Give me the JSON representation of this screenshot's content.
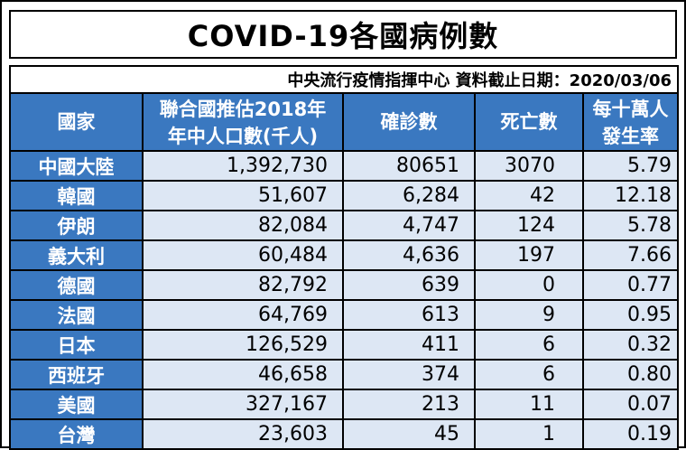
{
  "title": "COVID-19各國病例數",
  "source": "中央流行疫情指揮中心 資料截止日期：2020/03/06",
  "headers": {
    "country": "國家",
    "population_line1": "聯合國推估2018年",
    "population_line2": "年中人口數(千人)",
    "cases": "確診數",
    "deaths": "死亡數",
    "rate_line1": "每十萬人",
    "rate_line2": "發生率"
  },
  "rows": [
    {
      "country": "中國大陸",
      "population": "1,392,730",
      "cases": "80651",
      "deaths": "3070",
      "rate": "5.79"
    },
    {
      "country": "韓國",
      "population": "51,607",
      "cases": "6,284",
      "deaths": "42",
      "rate": "12.18"
    },
    {
      "country": "伊朗",
      "population": "82,084",
      "cases": "4,747",
      "deaths": "124",
      "rate": "5.78"
    },
    {
      "country": "義大利",
      "population": "60,484",
      "cases": "4,636",
      "deaths": "197",
      "rate": "7.66"
    },
    {
      "country": "德國",
      "population": "82,792",
      "cases": "639",
      "deaths": "0",
      "rate": "0.77"
    },
    {
      "country": "法國",
      "population": "64,769",
      "cases": "613",
      "deaths": "9",
      "rate": "0.95"
    },
    {
      "country": "日本",
      "population": "126,529",
      "cases": "411",
      "deaths": "6",
      "rate": "0.32"
    },
    {
      "country": "西班牙",
      "population": "46,658",
      "cases": "374",
      "deaths": "6",
      "rate": "0.80"
    },
    {
      "country": "美國",
      "population": "327,167",
      "cases": "213",
      "deaths": "11",
      "rate": "0.07"
    },
    {
      "country": "台灣",
      "population": "23,603",
      "cases": "45",
      "deaths": "1",
      "rate": "0.19"
    }
  ],
  "colors": {
    "header_blue": "#3a78c0",
    "cell_light_blue": "#dde7f4"
  }
}
